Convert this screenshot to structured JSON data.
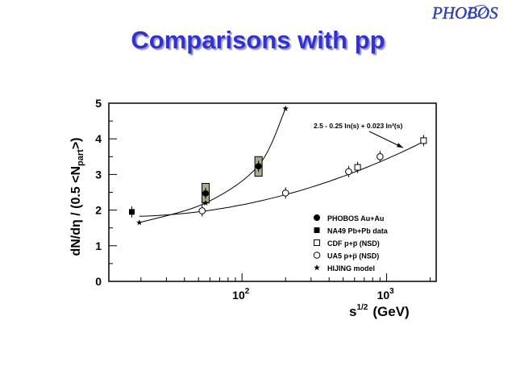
{
  "slide": {
    "title": "Comparisons with pp",
    "logo_text": "PHOBOS"
  },
  "colors": {
    "title": "#3333cc",
    "logo": "#3344bb",
    "band": "#a9a98e"
  },
  "chart_data": {
    "type": "scatter",
    "title": "",
    "xlabel": "s^1/2 (GeV)",
    "xlabel_base": "s",
    "xlabel_sup": "1/2",
    "xlabel_unit": "(GeV)",
    "ylabel": "dN/dη / (0.5 <Npart>)",
    "xscale": "log",
    "xlim": [
      12,
      2200
    ],
    "ylim": [
      0,
      5
    ],
    "xticks": [
      {
        "value": 100,
        "base": "10",
        "exp": "2"
      },
      {
        "value": 1000,
        "base": "10",
        "exp": "3"
      }
    ],
    "yticks": [
      0,
      1,
      2,
      3,
      4,
      5
    ],
    "grid": false,
    "legend_position": "bottom-right",
    "series": [
      {
        "name": "PHOBOS Au+Au",
        "marker": "filled-circle",
        "points": [
          {
            "x": 56,
            "y": 2.47,
            "band": [
              2.2,
              2.75
            ]
          },
          {
            "x": 130,
            "y": 3.23,
            "band": [
              2.95,
              3.5
            ]
          }
        ]
      },
      {
        "name": "NA49 Pb+Pb data",
        "marker": "filled-square",
        "points": [
          {
            "x": 17.3,
            "y": 1.95
          }
        ]
      },
      {
        "name": "CDF p+p̅ (NSD)",
        "marker": "open-square",
        "points": [
          {
            "x": 630,
            "y": 3.2
          },
          {
            "x": 1800,
            "y": 3.95
          }
        ]
      },
      {
        "name": "UA5 p+p̅ (NSD)",
        "marker": "open-circle",
        "points": [
          {
            "x": 53,
            "y": 1.98
          },
          {
            "x": 200,
            "y": 2.48
          },
          {
            "x": 546,
            "y": 3.08
          },
          {
            "x": 900,
            "y": 3.5
          }
        ]
      },
      {
        "name": "HIJING model",
        "marker": "star",
        "points": [
          {
            "x": 19.5,
            "y": 1.65
          },
          {
            "x": 56,
            "y": 2.2
          },
          {
            "x": 130,
            "y": 3.25
          },
          {
            "x": 200,
            "y": 4.85
          }
        ]
      }
    ],
    "annotations": [
      {
        "text": "2.5 - 0.25 ln(s) + 0.023 ln²(s)",
        "arrow_to_x": 1300,
        "arrow_to_y": 3.75
      }
    ]
  }
}
